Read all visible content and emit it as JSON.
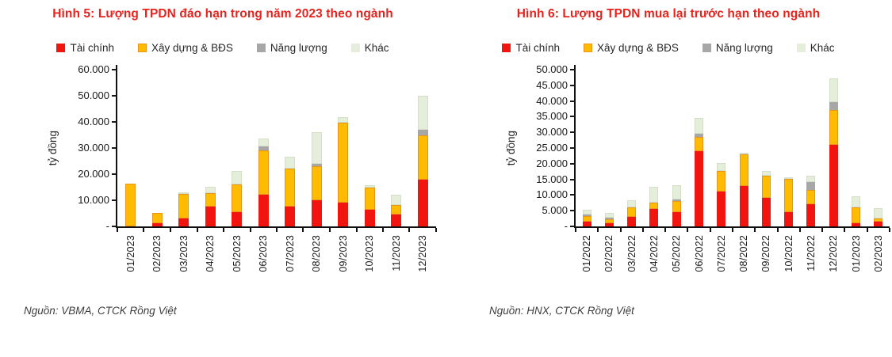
{
  "page": {
    "background": "#ffffff"
  },
  "colors": {
    "tai_chinh": "#f2150f",
    "xay_dung_fill": "#ffbb00",
    "xay_dung_border": "#e8941f",
    "nang_luong": "#a7a7a7",
    "khac_fill": "#e4eedb",
    "khac_border": "#d4e0c6",
    "title_red": "#e8221c",
    "axis": "#1a1a1a"
  },
  "legend": [
    {
      "label": "Tài chính",
      "color": "#f2150f"
    },
    {
      "label": "Xây dựng & BĐS",
      "color": "#ffbb00",
      "border": "#e8941f"
    },
    {
      "label": "Năng lượng",
      "color": "#a7a7a7"
    },
    {
      "label": "Khác",
      "color": "#e4eedb"
    }
  ],
  "figures": [
    {
      "source": "Nguồn: VBMA, CTCK Rồng Việt"
    },
    {
      "source": "Nguồn: HNX, CTCK Rồng Việt"
    }
  ],
  "chart_data": [
    {
      "type": "bar",
      "stacked": true,
      "title": "Hình 5: Lượng TPDN đáo hạn trong năm 2023 theo ngành",
      "xlabel": "",
      "ylabel": "tỷ đồng",
      "ylim": [
        0,
        60000
      ],
      "ytick_step": 10000,
      "yticks": [
        "60.000",
        "50.000",
        "40.000",
        "30.000",
        "20.000",
        "10.000",
        "-"
      ],
      "grid": false,
      "legend_position": "top",
      "categories": [
        "01/2023",
        "02/2023",
        "03/2023",
        "04/2023",
        "05/2023",
        "06/2023",
        "07/2023",
        "08/2023",
        "09/2023",
        "10/2023",
        "11/2023",
        "12/2023"
      ],
      "series": [
        {
          "name": "Tài chính",
          "values": [
            0,
            1300,
            3000,
            7500,
            5500,
            12000,
            7500,
            10000,
            9000,
            6500,
            4500,
            18000
          ]
        },
        {
          "name": "Xây dựng & BĐS",
          "values": [
            16500,
            4000,
            9500,
            5000,
            10500,
            17000,
            14500,
            13000,
            30500,
            8500,
            3500,
            17000
          ]
        },
        {
          "name": "Năng lượng",
          "values": [
            0,
            0,
            0,
            0,
            0,
            1500,
            0,
            1000,
            0,
            0,
            0,
            2000
          ]
        },
        {
          "name": "Khác",
          "values": [
            0,
            0,
            500,
            2500,
            5000,
            3000,
            4500,
            12000,
            2000,
            1000,
            4000,
            13000
          ]
        }
      ]
    },
    {
      "type": "bar",
      "stacked": true,
      "title": "Hình 6: Lượng TPDN mua lại trước hạn theo ngành",
      "xlabel": "",
      "ylabel": "tỷ đồng",
      "ylim": [
        0,
        50000
      ],
      "ytick_step": 5000,
      "yticks": [
        "50.000",
        "45.000",
        "40.000",
        "35.000",
        "30.000",
        "25.000",
        "20.000",
        "15.000",
        "10.000",
        "5.000",
        "-"
      ],
      "grid": false,
      "legend_position": "top",
      "categories": [
        "01/2022",
        "02/2022",
        "03/2022",
        "04/2022",
        "05/2022",
        "06/2022",
        "07/2022",
        "08/2022",
        "09/2022",
        "10/2022",
        "11/2022",
        "12/2022",
        "01/2023",
        "02/2023"
      ],
      "series": [
        {
          "name": "Tài chính",
          "values": [
            1500,
            1000,
            3000,
            5500,
            4500,
            24000,
            11000,
            13000,
            9000,
            4500,
            7000,
            26000,
            1000,
            1500
          ]
        },
        {
          "name": "Xây dựng & BĐS",
          "values": [
            1700,
            1300,
            3000,
            1900,
            3500,
            4500,
            6500,
            10000,
            7000,
            10500,
            4500,
            11000,
            5000,
            1000
          ]
        },
        {
          "name": "Năng lượng",
          "values": [
            500,
            500,
            0,
            0,
            500,
            1000,
            0,
            0,
            0,
            0,
            2500,
            2500,
            0,
            0
          ]
        },
        {
          "name": "Khác",
          "values": [
            1500,
            1500,
            2200,
            5100,
            4500,
            5000,
            2500,
            500,
            1500,
            500,
            2000,
            7500,
            3500,
            3300
          ]
        }
      ]
    }
  ]
}
